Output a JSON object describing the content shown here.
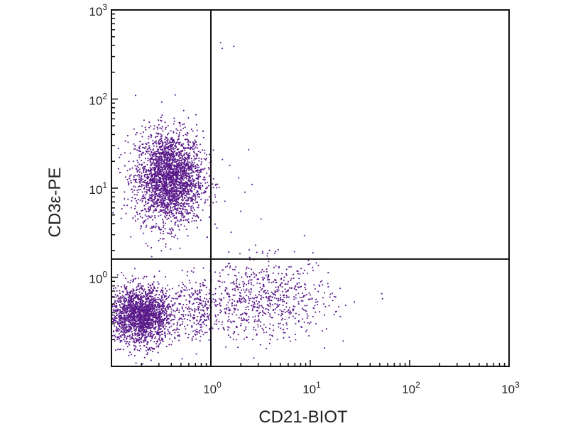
{
  "chart_data": {
    "type": "scatter",
    "title": "",
    "xlabel": "CD21-BIOT",
    "ylabel": "CD3ε-PE",
    "x_scale": "log",
    "y_scale": "log",
    "xlim": [
      0.1,
      1000
    ],
    "ylim": [
      0.1,
      1000
    ],
    "x_ticks": [
      {
        "value": 1,
        "base": "10",
        "exp": "0"
      },
      {
        "value": 10,
        "base": "10",
        "exp": "1"
      },
      {
        "value": 100,
        "base": "10",
        "exp": "2"
      },
      {
        "value": 1000,
        "base": "10",
        "exp": "3"
      }
    ],
    "y_ticks": [
      {
        "value": 1,
        "base": "10",
        "exp": "0"
      },
      {
        "value": 10,
        "base": "10",
        "exp": "1"
      },
      {
        "value": 100,
        "base": "10",
        "exp": "2"
      },
      {
        "value": 1000,
        "base": "10",
        "exp": "3"
      }
    ],
    "quadrant_gates": {
      "x": 1.0,
      "y": 1.6
    },
    "grid": false,
    "point_color": "#5a1a8a",
    "populations": [
      {
        "center_x": 0.38,
        "center_y": 13,
        "spread_x_log": 0.17,
        "spread_y_log": 0.26,
        "count": 2600
      },
      {
        "center_x": 0.2,
        "center_y": 0.37,
        "spread_x_log": 0.16,
        "spread_y_log": 0.16,
        "count": 2000
      },
      {
        "center_x": 3.5,
        "center_y": 0.55,
        "spread_x_log": 0.33,
        "spread_y_log": 0.22,
        "count": 700
      },
      {
        "center_x": 0.7,
        "center_y": 0.45,
        "spread_x_log": 0.12,
        "spread_y_log": 0.18,
        "count": 250
      }
    ],
    "outlier_points": [
      {
        "x": 1.25,
        "y": 430
      },
      {
        "x": 1.3,
        "y": 370
      },
      {
        "x": 1.7,
        "y": 390
      },
      {
        "x": 1.0,
        "y": 190
      },
      {
        "x": 1.55,
        "y": 18
      },
      {
        "x": 2.4,
        "y": 27
      },
      {
        "x": 1.9,
        "y": 13
      },
      {
        "x": 2.2,
        "y": 9
      },
      {
        "x": 2.6,
        "y": 11
      },
      {
        "x": 3.2,
        "y": 4.5
      },
      {
        "x": 2.0,
        "y": 5.5
      },
      {
        "x": 3.9,
        "y": 2.0
      },
      {
        "x": 2.9,
        "y": 1.9
      },
      {
        "x": 1.6,
        "y": 3.2
      },
      {
        "x": 11.5,
        "y": 1.45
      },
      {
        "x": 15,
        "y": 0.85
      },
      {
        "x": 18,
        "y": 0.6
      },
      {
        "x": 20,
        "y": 0.75
      }
    ]
  }
}
